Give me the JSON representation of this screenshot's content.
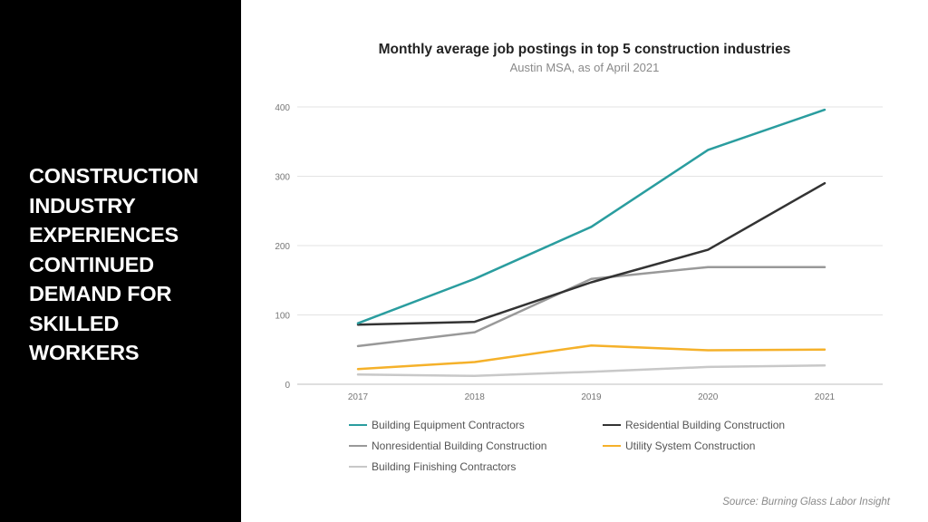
{
  "headline": {
    "lines": [
      "CONSTRUCTION",
      "INDUSTRY",
      "EXPERIENCES",
      "CONTINUED",
      "DEMAND FOR",
      "SKILLED",
      "WORKERS"
    ]
  },
  "chart_data": {
    "type": "line",
    "title": "Monthly average job postings in top 5 construction industries",
    "subtitle": "Austin MSA, as of April 2021",
    "xlabel": "",
    "ylabel": "",
    "x": [
      "2017",
      "2018",
      "2019",
      "2020",
      "2021"
    ],
    "ylim": [
      0,
      400
    ],
    "yticks": [
      0,
      100,
      200,
      300,
      400
    ],
    "grid": true,
    "legend_position": "bottom",
    "series": [
      {
        "name": "Building Equipment Contractors",
        "color": "#2a9d9f",
        "values": [
          88,
          152,
          227,
          338,
          396
        ]
      },
      {
        "name": "Residential Building Construction",
        "color": "#333333",
        "values": [
          86,
          90,
          147,
          194,
          290
        ]
      },
      {
        "name": "Nonresidential Building Construction",
        "color": "#999999",
        "values": [
          55,
          75,
          152,
          169,
          169
        ]
      },
      {
        "name": "Utility System Construction",
        "color": "#f5b12a",
        "values": [
          22,
          32,
          56,
          49,
          50
        ]
      },
      {
        "name": "Building Finishing Contractors",
        "color": "#c8c8c8",
        "values": [
          14,
          12,
          18,
          25,
          27
        ]
      }
    ]
  },
  "source": "Source: Burning Glass Labor Insight"
}
